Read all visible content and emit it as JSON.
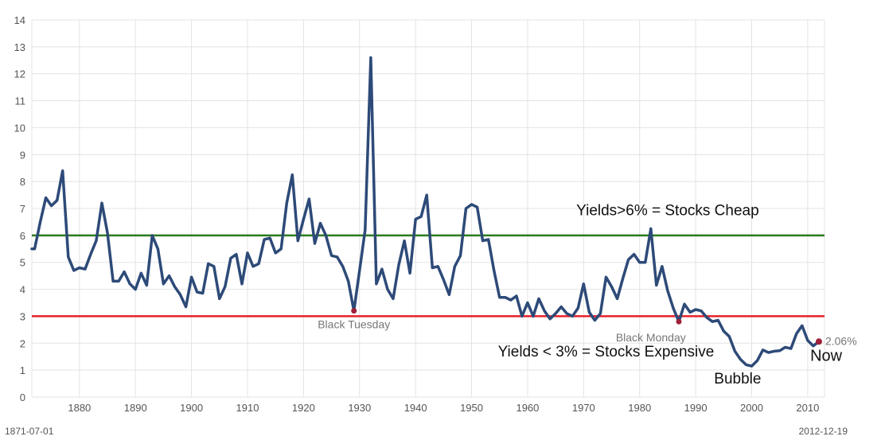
{
  "chart_data": {
    "type": "line",
    "title": "",
    "xlabel": "",
    "ylabel": "",
    "xlim": [
      1871.5,
      2013
    ],
    "ylim": [
      0,
      14
    ],
    "grid": true,
    "y_ticks": [
      0,
      1,
      2,
      3,
      4,
      5,
      6,
      7,
      8,
      9,
      10,
      11,
      12,
      13,
      14
    ],
    "x_ticks": [
      1880,
      1890,
      1900,
      1910,
      1920,
      1930,
      1940,
      1950,
      1960,
      1970,
      1980,
      1990,
      2000,
      2010
    ],
    "range_start_label": "1871-07-01",
    "range_end_label": "2012-12-19",
    "colors": {
      "series": "#2d4a78",
      "cheap_line": "#2a7a1e",
      "expensive_line": "#e8202a",
      "marker": "#a0203a",
      "grid": "#e3e3e3"
    },
    "series": [
      {
        "values": [
          [
            1871.5,
            5.5
          ],
          [
            1872,
            5.5
          ],
          [
            1873,
            6.5
          ],
          [
            1874,
            7.4
          ],
          [
            1875,
            7.1
          ],
          [
            1876,
            7.3
          ],
          [
            1877,
            8.4
          ],
          [
            1878,
            5.2
          ],
          [
            1879,
            4.7
          ],
          [
            1880,
            4.8
          ],
          [
            1881,
            4.75
          ],
          [
            1882,
            5.3
          ],
          [
            1883,
            5.8
          ],
          [
            1884,
            7.2
          ],
          [
            1885,
            6.1
          ],
          [
            1886,
            4.3
          ],
          [
            1887,
            4.3
          ],
          [
            1888,
            4.65
          ],
          [
            1889,
            4.2
          ],
          [
            1890,
            4.0
          ],
          [
            1891,
            4.6
          ],
          [
            1892,
            4.15
          ],
          [
            1893,
            6.0
          ],
          [
            1894,
            5.5
          ],
          [
            1895,
            4.2
          ],
          [
            1896,
            4.5
          ],
          [
            1897,
            4.1
          ],
          [
            1898,
            3.8
          ],
          [
            1899,
            3.35
          ],
          [
            1900,
            4.45
          ],
          [
            1901,
            3.9
          ],
          [
            1902,
            3.85
          ],
          [
            1903,
            4.95
          ],
          [
            1904,
            4.85
          ],
          [
            1905,
            3.65
          ],
          [
            1906,
            4.1
          ],
          [
            1907,
            5.15
          ],
          [
            1908,
            5.3
          ],
          [
            1909,
            4.2
          ],
          [
            1910,
            5.35
          ],
          [
            1911,
            4.85
          ],
          [
            1912,
            4.95
          ],
          [
            1913,
            5.85
          ],
          [
            1914,
            5.9
          ],
          [
            1915,
            5.35
          ],
          [
            1916,
            5.5
          ],
          [
            1917,
            7.2
          ],
          [
            1918,
            8.25
          ],
          [
            1919,
            5.8
          ],
          [
            1920,
            6.6
          ],
          [
            1921,
            7.35
          ],
          [
            1922,
            5.7
          ],
          [
            1923,
            6.45
          ],
          [
            1924,
            6.0
          ],
          [
            1925,
            5.25
          ],
          [
            1926,
            5.2
          ],
          [
            1927,
            4.85
          ],
          [
            1928,
            4.3
          ],
          [
            1929,
            3.2
          ],
          [
            1930,
            4.7
          ],
          [
            1931,
            6.2
          ],
          [
            1932,
            12.6
          ],
          [
            1933,
            4.2
          ],
          [
            1934,
            4.75
          ],
          [
            1935,
            4.0
          ],
          [
            1936,
            3.65
          ],
          [
            1937,
            4.9
          ],
          [
            1938,
            5.8
          ],
          [
            1939,
            4.6
          ],
          [
            1940,
            6.6
          ],
          [
            1941,
            6.7
          ],
          [
            1942,
            7.5
          ],
          [
            1943,
            4.8
          ],
          [
            1944,
            4.85
          ],
          [
            1945,
            4.35
          ],
          [
            1946,
            3.8
          ],
          [
            1947,
            4.85
          ],
          [
            1948,
            5.25
          ],
          [
            1949,
            7.0
          ],
          [
            1950,
            7.15
          ],
          [
            1951,
            7.05
          ],
          [
            1952,
            5.8
          ],
          [
            1953,
            5.85
          ],
          [
            1954,
            4.7
          ],
          [
            1955,
            3.7
          ],
          [
            1956,
            3.7
          ],
          [
            1957,
            3.6
          ],
          [
            1958,
            3.75
          ],
          [
            1959,
            3.0
          ],
          [
            1960,
            3.5
          ],
          [
            1961,
            3.0
          ],
          [
            1962,
            3.65
          ],
          [
            1963,
            3.2
          ],
          [
            1964,
            2.9
          ],
          [
            1965,
            3.1
          ],
          [
            1966,
            3.35
          ],
          [
            1967,
            3.1
          ],
          [
            1968,
            3.0
          ],
          [
            1969,
            3.3
          ],
          [
            1970,
            4.2
          ],
          [
            1971,
            3.15
          ],
          [
            1972,
            2.85
          ],
          [
            1973,
            3.1
          ],
          [
            1974,
            4.45
          ],
          [
            1975,
            4.1
          ],
          [
            1976,
            3.65
          ],
          [
            1977,
            4.4
          ],
          [
            1978,
            5.1
          ],
          [
            1979,
            5.3
          ],
          [
            1980,
            5.0
          ],
          [
            1981,
            5.0
          ],
          [
            1982,
            6.25
          ],
          [
            1983,
            4.15
          ],
          [
            1984,
            4.85
          ],
          [
            1985,
            3.95
          ],
          [
            1986,
            3.3
          ],
          [
            1987,
            2.8
          ],
          [
            1988,
            3.45
          ],
          [
            1989,
            3.15
          ],
          [
            1990,
            3.25
          ],
          [
            1991,
            3.2
          ],
          [
            1992,
            2.95
          ],
          [
            1993,
            2.8
          ],
          [
            1994,
            2.85
          ],
          [
            1995,
            2.45
          ],
          [
            1996,
            2.25
          ],
          [
            1997,
            1.7
          ],
          [
            1998,
            1.4
          ],
          [
            1999,
            1.2
          ],
          [
            2000,
            1.15
          ],
          [
            2001,
            1.35
          ],
          [
            2002,
            1.75
          ],
          [
            2003,
            1.65
          ],
          [
            2004,
            1.7
          ],
          [
            2005,
            1.72
          ],
          [
            2006,
            1.85
          ],
          [
            2007,
            1.8
          ],
          [
            2008,
            2.35
          ],
          [
            2009,
            2.65
          ],
          [
            2010,
            2.1
          ],
          [
            2011,
            1.9
          ],
          [
            2012,
            2.06
          ]
        ]
      }
    ],
    "reference_lines": [
      {
        "y": 6,
        "label": "Yields>6% = Stocks Cheap",
        "label_x": 1985,
        "label_y": 6.75
      },
      {
        "y": 3,
        "label": "Yields < 3% = Stocks Expensive",
        "label_x": 1974,
        "label_y": 1.5
      }
    ],
    "event_markers": [
      {
        "x": 1929,
        "y": 3.2,
        "label": "Black Tuesday",
        "label_x": 1929,
        "label_y": 2.55
      },
      {
        "x": 1987,
        "y": 2.8,
        "label": "Black Monday",
        "label_x": 1982,
        "label_y": 2.07
      }
    ],
    "annotations": [
      {
        "text": "Bubble",
        "x": 1997.5,
        "y": 0.5,
        "style": "big"
      },
      {
        "text": "Now",
        "x": 2013.3,
        "y": 1.35,
        "style": "now"
      }
    ],
    "end_marker": {
      "x": 2012,
      "y": 2.06,
      "label": "2.06%"
    }
  }
}
